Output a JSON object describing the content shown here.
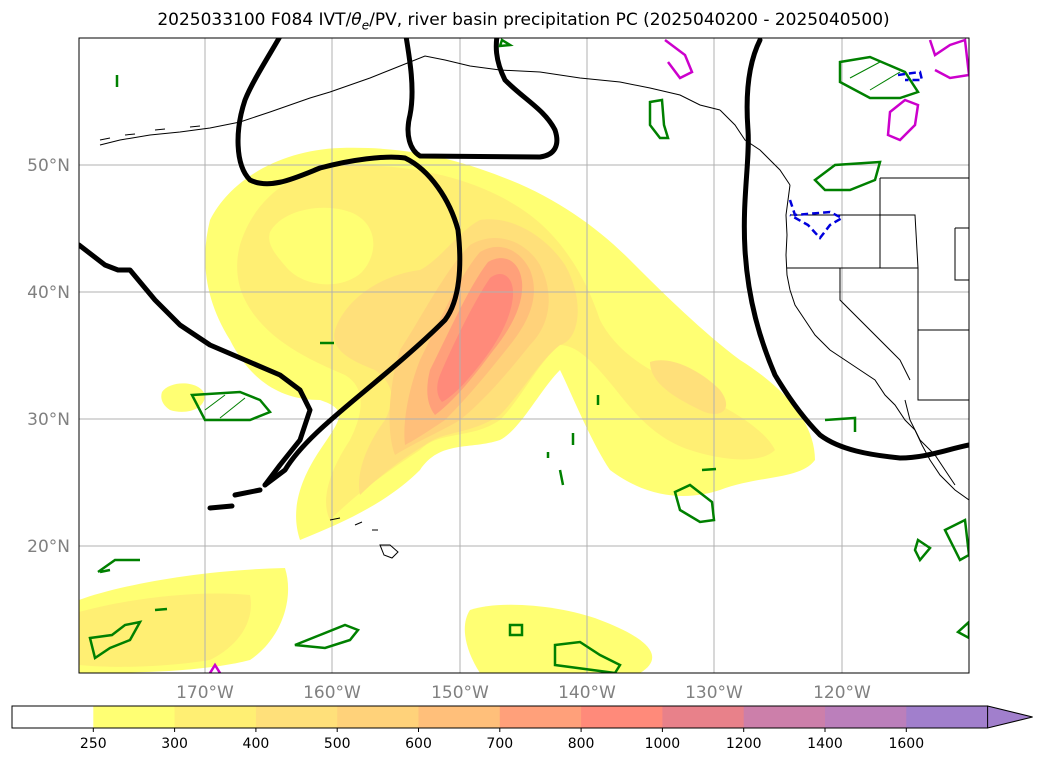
{
  "title": "2025033100 F084 IVT/θₑ/PV, river basin precipitation PC (2025040200 - 2025040500)",
  "title_parts": {
    "prefix": "2025033100 F084 IVT/",
    "theta": "θ",
    "sub": "e",
    "suffix": "/PV, river basin precipitation PC (2025040200 - 2025040500)"
  },
  "map": {
    "lon_range": [
      180,
      110
    ],
    "lat_range": [
      10,
      60
    ],
    "lat_ticks": [
      {
        "value": 20,
        "label": "20°N"
      },
      {
        "value": 30,
        "label": "30°N"
      },
      {
        "value": 40,
        "label": "40°N"
      },
      {
        "value": 50,
        "label": "50°N"
      }
    ],
    "lon_ticks": [
      {
        "value": 170,
        "label": "170°W"
      },
      {
        "value": 160,
        "label": "160°W"
      },
      {
        "value": 150,
        "label": "150°W"
      },
      {
        "value": 140,
        "label": "140°W"
      },
      {
        "value": 130,
        "label": "130°W"
      },
      {
        "value": 120,
        "label": "120°W"
      }
    ],
    "grid": true
  },
  "colorbar": {
    "levels": [
      "250",
      "300",
      "400",
      "500",
      "600",
      "700",
      "800",
      "1000",
      "1200",
      "1400",
      "1600"
    ],
    "colors": [
      "#ffffff",
      "#ffff73",
      "#ffef73",
      "#ffe07a",
      "#ffd27a",
      "#ffbf7a",
      "#ffa07a",
      "#ff8a7a",
      "#e8818a",
      "#cc7faa",
      "#bb7fbb",
      "#a17fcc"
    ],
    "extend": "max"
  },
  "colors": {
    "pv_contour": "#000000",
    "theta_green": "#008000",
    "theta_magenta": "#cc00cc",
    "theta_blue": "#0000dd",
    "coastline": "#000000",
    "grid": "#b0b0b0"
  }
}
